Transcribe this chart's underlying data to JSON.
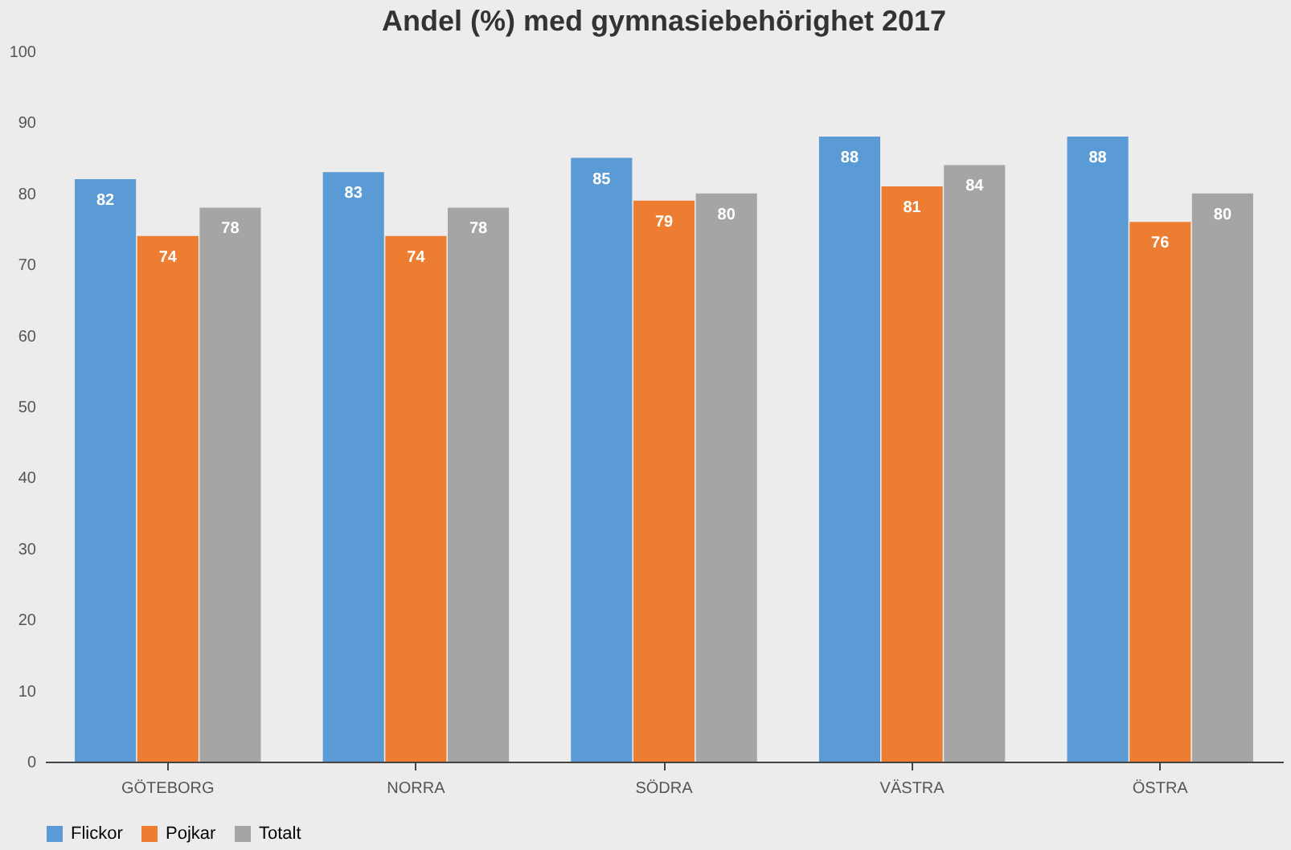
{
  "chart_data": {
    "type": "bar",
    "title": "Andel (%) med gymnasiebehörighet 2017",
    "categories": [
      "GÖTEBORG",
      "NORRA",
      "SÖDRA",
      "VÄSTRA",
      "ÖSTRA"
    ],
    "series": [
      {
        "name": "Flickor",
        "color": "#5b9bd5",
        "values": [
          82,
          83,
          85,
          88,
          88
        ]
      },
      {
        "name": "Pojkar",
        "color": "#ed7d31",
        "values": [
          74,
          74,
          79,
          81,
          76
        ]
      },
      {
        "name": "Totalt",
        "color": "#a5a5a5",
        "values": [
          78,
          78,
          80,
          84,
          80
        ]
      }
    ],
    "ylim": [
      0,
      100
    ],
    "yticks": [
      0,
      10,
      20,
      30,
      40,
      50,
      60,
      70,
      80,
      90,
      100
    ],
    "grid": false,
    "legend": "bottom",
    "data_labels": true
  }
}
